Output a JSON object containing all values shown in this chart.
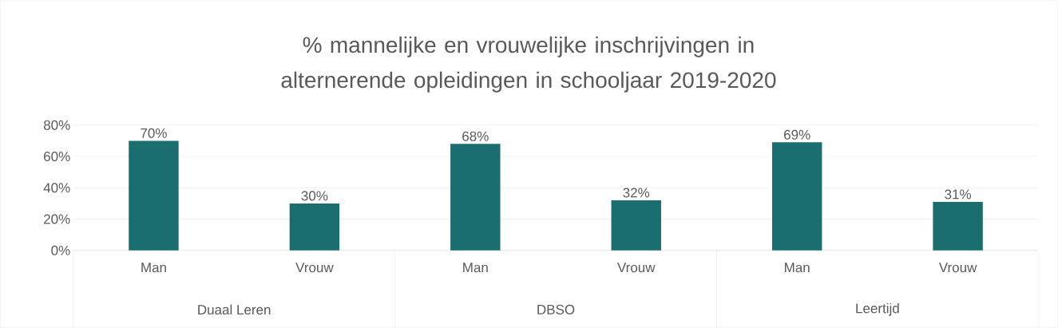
{
  "chart_data": {
    "type": "bar",
    "title": "% mannelijke en vrouwelijke inschrijvingen in alternerende opleidingen in schooljaar 2019-2020",
    "categories": [
      "Man",
      "Vrouw",
      "Man",
      "Vrouw",
      "Man",
      "Vrouw"
    ],
    "values": [
      70,
      30,
      68,
      32,
      69,
      31
    ],
    "color": "#1b6e70",
    "value_labels": [
      "70%",
      "30%",
      "68%",
      "32%",
      "69%",
      "31%"
    ],
    "annotations": [
      "Duaal Leren",
      "DBSO",
      "Leertijd"
    ],
    "ylim": [
      0,
      80
    ],
    "yticks": [
      {
        "value": 0,
        "label": "0%"
      },
      {
        "value": 20,
        "label": "20%"
      },
      {
        "value": 40,
        "label": "40%"
      },
      {
        "value": 60,
        "label": "60%"
      },
      {
        "value": 80,
        "label": "80%"
      }
    ],
    "grid": "y"
  }
}
